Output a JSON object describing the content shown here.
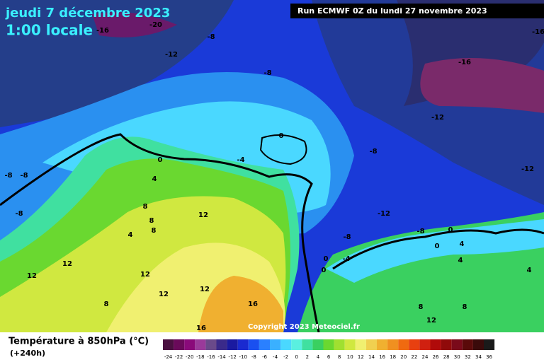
{
  "header": {
    "date": "jeudi 7 décembre 2023",
    "time": "1:00 locale",
    "run": "Run ECMWF 0Z du lundi 27 novembre 2023"
  },
  "map": {
    "contour_labels": [
      -16,
      -20,
      -8,
      -12,
      -8,
      -16,
      -16,
      -12,
      -8,
      -12,
      0,
      0,
      -4,
      -8,
      -8,
      4,
      -8,
      8,
      12,
      8,
      8,
      4,
      -12,
      -8,
      0,
      -8,
      0,
      4,
      0,
      0,
      -4,
      4,
      12,
      12,
      12,
      12,
      12,
      8,
      16,
      8,
      8,
      12,
      16,
      4
    ]
  },
  "footer": {
    "copyright": "Copyright 2023 Meteociel.fr",
    "title": "Température à 850hPa (°C)",
    "lead": "(+240h)"
  },
  "legend": {
    "values": [
      -24,
      -22,
      -20,
      -18,
      -16,
      -14,
      -12,
      -10,
      -8,
      -6,
      -4,
      -2,
      0,
      2,
      4,
      6,
      8,
      10,
      12,
      14,
      16,
      18,
      20,
      22,
      24,
      26,
      28,
      30,
      32,
      34,
      36
    ],
    "colors": [
      "#4a1040",
      "#6a0a5a",
      "#8a0a7a",
      "#9a3a9a",
      "#6a4a8a",
      "#3a2a8a",
      "#1a1aa0",
      "#1a2ad0",
      "#1a50f0",
      "#2a80ff",
      "#3ab0ff",
      "#4ad8ff",
      "#5af0e0",
      "#40e0a0",
      "#3ad060",
      "#6ad830",
      "#a0e030",
      "#d0e840",
      "#f0f070",
      "#f0d050",
      "#f0b030",
      "#f09020",
      "#f06a10",
      "#e84010",
      "#d02010",
      "#b00a0a",
      "#900a0a",
      "#7a0a1a",
      "#5a0a0a",
      "#3a0a0a",
      "#1a1a1a"
    ]
  }
}
